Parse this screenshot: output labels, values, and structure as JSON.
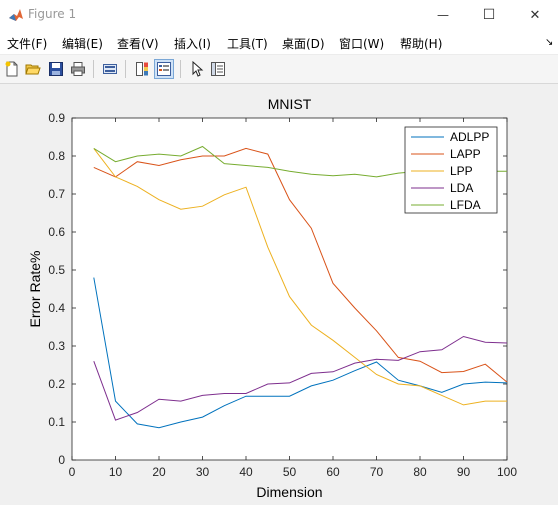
{
  "window": {
    "title": "Figure 1",
    "minimize_glyph": "—",
    "maximize_glyph": "☐",
    "close_glyph": "✕"
  },
  "menubar": {
    "items": [
      {
        "label": "文件(F)"
      },
      {
        "label": "编辑(E)"
      },
      {
        "label": "查看(V)"
      },
      {
        "label": "插入(I)"
      },
      {
        "label": "工具(T)"
      },
      {
        "label": "桌面(D)"
      },
      {
        "label": "窗口(W)"
      },
      {
        "label": "帮助(H)"
      }
    ],
    "overflow_glyph": "↘"
  },
  "toolbar": {
    "icons": [
      "new-figure-icon",
      "open-file-icon",
      "save-icon",
      "print-icon",
      "link-axes-icon",
      "colorbar-icon",
      "legend-icon",
      "pointer-icon",
      "property-editor-icon"
    ],
    "active": "legend-icon"
  },
  "colors": {
    "ADLPP": "#0072bd",
    "LAPP": "#d95319",
    "LPP": "#edb120",
    "LDA": "#7e2f8e",
    "LFDA": "#77ac30"
  },
  "chart_data": {
    "type": "line",
    "title": "MNIST",
    "xlabel": "Dimension",
    "ylabel": "Error Rate%",
    "xlim": [
      0,
      100
    ],
    "ylim": [
      0,
      0.9
    ],
    "xticks": [
      0,
      10,
      20,
      30,
      40,
      50,
      60,
      70,
      80,
      90,
      100
    ],
    "yticks": [
      0,
      0.1,
      0.2,
      0.3,
      0.4,
      0.5,
      0.6,
      0.7,
      0.8,
      0.9
    ],
    "grid": false,
    "legend_position": "top-right",
    "x": [
      5,
      10,
      15,
      20,
      25,
      30,
      35,
      40,
      45,
      50,
      55,
      60,
      65,
      70,
      75,
      80,
      85,
      90,
      95,
      100
    ],
    "series": [
      {
        "name": "ADLPP",
        "values": [
          0.48,
          0.155,
          0.095,
          0.085,
          0.1,
          0.113,
          0.143,
          0.168,
          0.168,
          0.168,
          0.195,
          0.21,
          0.235,
          0.258,
          0.21,
          0.195,
          0.178,
          0.2,
          0.205,
          0.203
        ]
      },
      {
        "name": "LAPP",
        "values": [
          0.77,
          0.745,
          0.785,
          0.775,
          0.79,
          0.8,
          0.8,
          0.82,
          0.805,
          0.685,
          0.61,
          0.465,
          0.4,
          0.34,
          0.27,
          0.26,
          0.23,
          0.233,
          0.252,
          0.205
        ]
      },
      {
        "name": "LPP",
        "values": [
          0.82,
          0.745,
          0.72,
          0.685,
          0.66,
          0.668,
          0.698,
          0.718,
          0.56,
          0.43,
          0.355,
          0.315,
          0.27,
          0.225,
          0.2,
          0.195,
          0.17,
          0.145,
          0.155,
          0.155
        ]
      },
      {
        "name": "LDA",
        "values": [
          0.26,
          0.105,
          0.125,
          0.16,
          0.155,
          0.17,
          0.175,
          0.175,
          0.2,
          0.203,
          0.228,
          0.232,
          0.255,
          0.265,
          0.262,
          0.285,
          0.29,
          0.325,
          0.31,
          0.308
        ]
      },
      {
        "name": "LFDA",
        "values": [
          0.82,
          0.785,
          0.8,
          0.805,
          0.8,
          0.825,
          0.78,
          0.775,
          0.77,
          0.76,
          0.752,
          0.748,
          0.752,
          0.745,
          0.755,
          0.76,
          0.76,
          0.76,
          0.76,
          0.76
        ]
      }
    ]
  }
}
